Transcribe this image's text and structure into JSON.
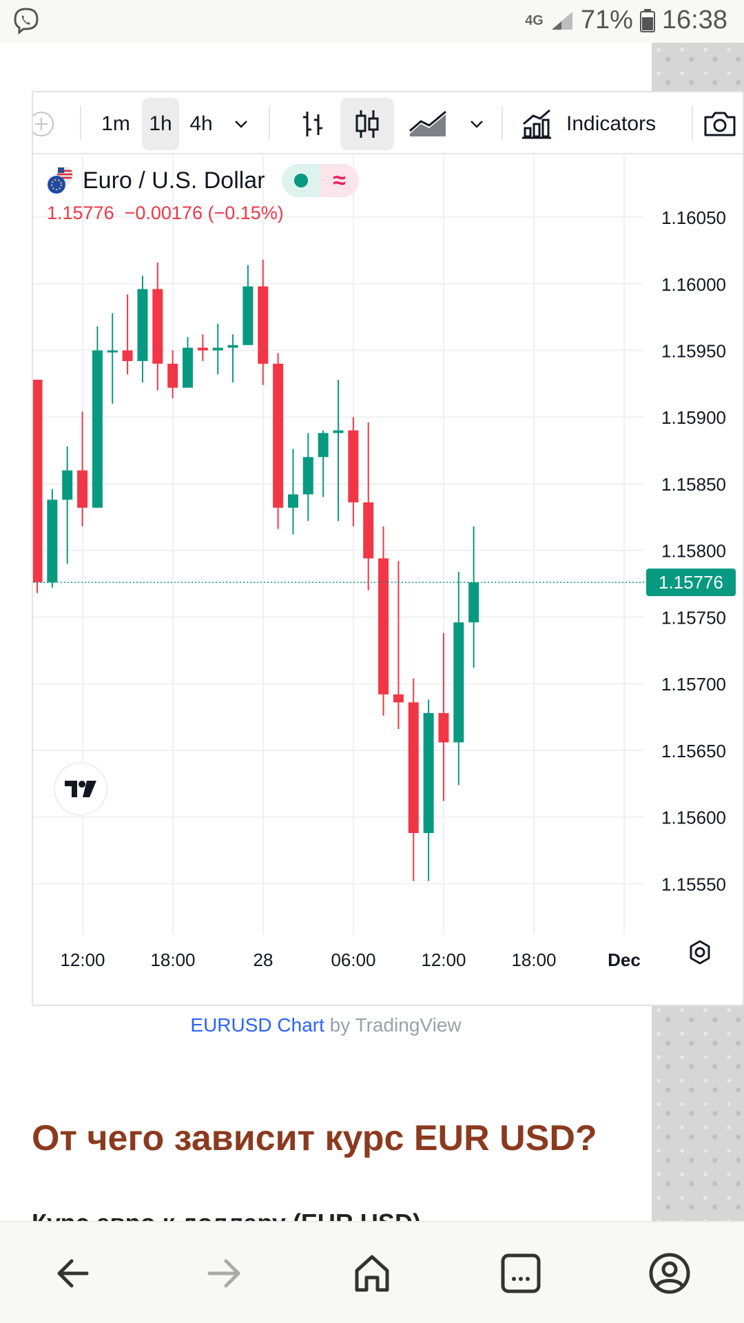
{
  "status_bar": {
    "network": "4G",
    "battery": "71%",
    "time": "16:38"
  },
  "toolbar": {
    "add_symbol": "+",
    "intervals": [
      "1m",
      "1h",
      "4h"
    ],
    "active_interval": "1h",
    "indicators_label": "Indicators"
  },
  "legend": {
    "symbol_name": "Euro / U.S. Dollar",
    "price_line": "1.15776  −0.00176 (−0.15%)",
    "series_wave_icon": "≈"
  },
  "chart_data": {
    "type": "candlestick",
    "series": [
      {
        "name": "Euro / U.S. Dollar"
      }
    ],
    "y_axis": {
      "ticks": [
        "1.16050",
        "1.16000",
        "1.15950",
        "1.15900",
        "1.15850",
        "1.15800",
        "1.15750",
        "1.15700",
        "1.15650",
        "1.15600",
        "1.15550"
      ],
      "range": [
        1.15512,
        1.16096
      ]
    },
    "current_price": "1.15776",
    "x_axis": {
      "ticks": [
        "12:00",
        "18:00",
        "28",
        "06:00",
        "12:00",
        "18:00",
        "Dec"
      ]
    },
    "candles": [
      {
        "o": 1.15928,
        "h": 1.15928,
        "l": 1.15768,
        "c": 1.15776
      },
      {
        "o": 1.15776,
        "h": 1.15846,
        "l": 1.15772,
        "c": 1.15838
      },
      {
        "o": 1.15838,
        "h": 1.15878,
        "l": 1.1579,
        "c": 1.1586
      },
      {
        "o": 1.1586,
        "h": 1.15904,
        "l": 1.15818,
        "c": 1.15832
      },
      {
        "o": 1.15832,
        "h": 1.15968,
        "l": 1.15832,
        "c": 1.1595
      },
      {
        "o": 1.1595,
        "h": 1.15978,
        "l": 1.1591,
        "c": 1.1595
      },
      {
        "o": 1.1595,
        "h": 1.15992,
        "l": 1.15932,
        "c": 1.15942
      },
      {
        "o": 1.15942,
        "h": 1.16006,
        "l": 1.15926,
        "c": 1.15996
      },
      {
        "o": 1.15996,
        "h": 1.16016,
        "l": 1.1592,
        "c": 1.1594
      },
      {
        "o": 1.1594,
        "h": 1.1595,
        "l": 1.15914,
        "c": 1.15922
      },
      {
        "o": 1.15922,
        "h": 1.1596,
        "l": 1.15922,
        "c": 1.15952
      },
      {
        "o": 1.15952,
        "h": 1.15962,
        "l": 1.15942,
        "c": 1.1595
      },
      {
        "o": 1.1595,
        "h": 1.1597,
        "l": 1.15932,
        "c": 1.15952
      },
      {
        "o": 1.15952,
        "h": 1.15962,
        "l": 1.15926,
        "c": 1.15954
      },
      {
        "o": 1.15954,
        "h": 1.16014,
        "l": 1.15954,
        "c": 1.15998
      },
      {
        "o": 1.15998,
        "h": 1.16018,
        "l": 1.15924,
        "c": 1.1594
      },
      {
        "o": 1.1594,
        "h": 1.15948,
        "l": 1.15816,
        "c": 1.15832
      },
      {
        "o": 1.15832,
        "h": 1.15876,
        "l": 1.15812,
        "c": 1.15842
      },
      {
        "o": 1.15842,
        "h": 1.15888,
        "l": 1.15822,
        "c": 1.1587
      },
      {
        "o": 1.1587,
        "h": 1.1589,
        "l": 1.1584,
        "c": 1.15888
      },
      {
        "o": 1.15888,
        "h": 1.15928,
        "l": 1.15822,
        "c": 1.1589
      },
      {
        "o": 1.1589,
        "h": 1.159,
        "l": 1.15818,
        "c": 1.15836
      },
      {
        "o": 1.15836,
        "h": 1.15896,
        "l": 1.1577,
        "c": 1.15794
      },
      {
        "o": 1.15794,
        "h": 1.15818,
        "l": 1.15676,
        "c": 1.15692
      },
      {
        "o": 1.15692,
        "h": 1.15792,
        "l": 1.15666,
        "c": 1.15686
      },
      {
        "o": 1.15686,
        "h": 1.15704,
        "l": 1.15552,
        "c": 1.15588
      },
      {
        "o": 1.15588,
        "h": 1.15688,
        "l": 1.15552,
        "c": 1.15678
      },
      {
        "o": 1.15678,
        "h": 1.15738,
        "l": 1.15612,
        "c": 1.15656
      },
      {
        "o": 1.15656,
        "h": 1.15784,
        "l": 1.15624,
        "c": 1.15746
      },
      {
        "o": 1.15746,
        "h": 1.15818,
        "l": 1.15712,
        "c": 1.15776
      }
    ],
    "grid": true,
    "colors": {
      "up": "#089981",
      "down": "#f23645",
      "price_label": "#089981"
    }
  },
  "article": {
    "link_blue": "EURUSD Chart",
    "link_rest": " by TradingView",
    "heading": "От чего зависит курс EUR USD?",
    "cut_text": "Курс евро к доллару (EUR USD)"
  },
  "colors": {
    "heading": "#8b3a1f",
    "link": "#2962ff"
  }
}
